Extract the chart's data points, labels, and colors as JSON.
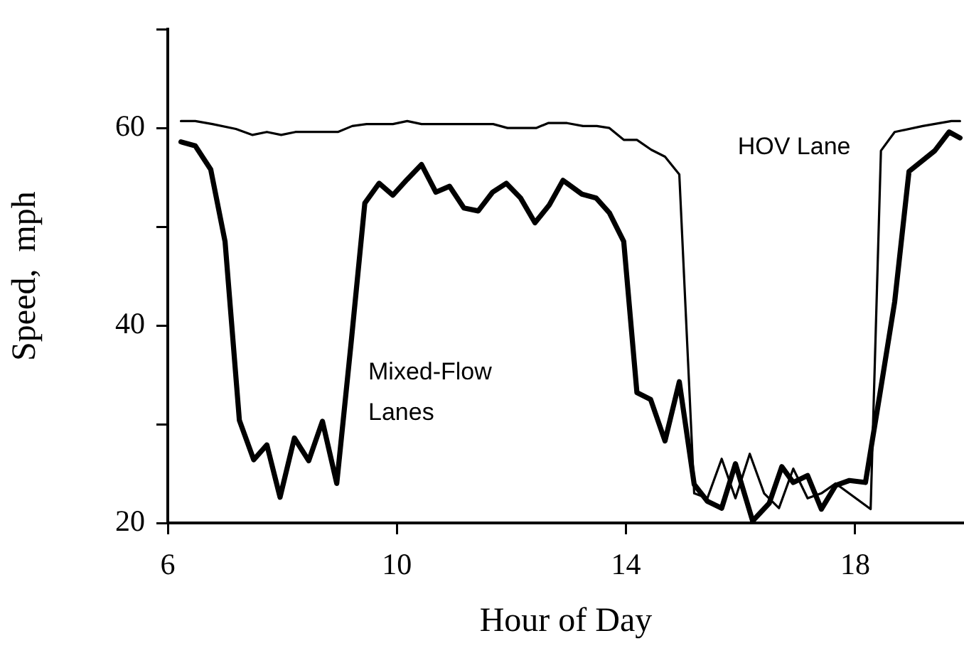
{
  "chart_data": {
    "type": "line",
    "xlabel": "Hour of Day",
    "ylabel": "Speed,  mph",
    "xlim": [
      6,
      19.9
    ],
    "xticks": [
      6,
      10,
      14,
      18
    ],
    "ylim": [
      20,
      70
    ],
    "yticks": [
      20,
      {
        "value": 30,
        "label": null
      },
      40,
      {
        "value": 50,
        "label": null
      },
      60,
      {
        "value": 70,
        "label": null
      }
    ],
    "grid": false,
    "legend": false,
    "marker": "none",
    "line_style": "solid",
    "series": [
      {
        "name": "HOV Lane",
        "color": "#000000",
        "x": [
          6.23,
          6.48,
          6.78,
          7.19,
          7.48,
          7.73,
          7.98,
          8.23,
          8.97,
          9.22,
          9.47,
          9.93,
          10.18,
          10.43,
          11.68,
          11.93,
          12.43,
          12.64,
          12.97,
          13.25,
          13.49,
          13.71,
          13.96,
          14.19,
          14.44,
          14.68,
          14.93,
          15.19,
          15.42,
          15.67,
          15.91,
          16.16,
          16.41,
          16.67,
          16.92,
          17.17,
          17.41,
          17.66,
          18.27,
          18.45,
          18.69,
          19.18,
          19.68,
          19.83
        ],
        "values": [
          60.7,
          60.7,
          60.4,
          59.9,
          59.3,
          59.6,
          59.3,
          59.6,
          59.6,
          60.2,
          60.4,
          60.4,
          60.7,
          60.4,
          60.4,
          60,
          60,
          60.5,
          60.5,
          60.2,
          60.2,
          60,
          58.8,
          58.8,
          57.8,
          57.1,
          55.3,
          23,
          22.5,
          26.5,
          22.5,
          27,
          23,
          21.5,
          25.5,
          22.5,
          23,
          24,
          21.4,
          57.7,
          59.6,
          60.2,
          60.7,
          60.7
        ]
      },
      {
        "name": "Mixed-Flow Lanes",
        "color": "#000000",
        "x": [
          6.23,
          6.48,
          6.75,
          7,
          7.25,
          7.5,
          7.73,
          7.96,
          8.21,
          8.46,
          8.7,
          8.95,
          9.2,
          9.44,
          9.69,
          9.93,
          10.18,
          10.43,
          10.68,
          10.92,
          11.17,
          11.42,
          11.67,
          11.91,
          12.16,
          12.41,
          12.66,
          12.9,
          13.23,
          13.48,
          13.71,
          13.96,
          14.19,
          14.43,
          14.68,
          14.93,
          15.19,
          15.42,
          15.67,
          15.91,
          16.21,
          16.5,
          16.72,
          16.92,
          17.17,
          17.41,
          17.66,
          17.9,
          18.18,
          18.43,
          18.69,
          18.94,
          19.39,
          19.64,
          19.83
        ],
        "values": [
          58.6,
          58.2,
          55.8,
          48.5,
          30.4,
          26.4,
          27.9,
          22.6,
          28.6,
          26.3,
          30.3,
          24,
          38.2,
          52.4,
          54.4,
          53.2,
          54.8,
          56.3,
          53.5,
          54.1,
          51.9,
          51.6,
          53.5,
          54.4,
          52.9,
          50.4,
          52.2,
          54.7,
          53.3,
          52.9,
          51.4,
          48.5,
          33.2,
          32.5,
          28.3,
          34.3,
          23.9,
          22.2,
          21.5,
          26,
          20.2,
          22,
          25.7,
          24.1,
          24.8,
          21.4,
          23.8,
          24.3,
          24.1,
          33,
          42.4,
          55.6,
          57.7,
          59.6,
          59
        ]
      }
    ]
  }
}
